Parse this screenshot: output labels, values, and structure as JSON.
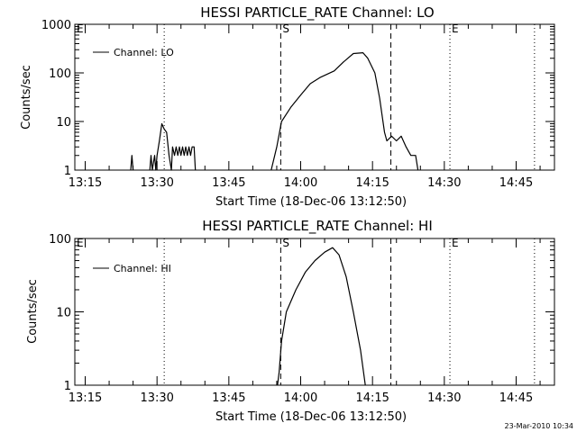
{
  "footer": {
    "date": "23-Mar-2010 10:34"
  },
  "chart_data": [
    {
      "type": "line",
      "title": "HESSI PARTICLE_RATE Channel: LO",
      "xlabel": "Start Time (18-Dec-06 13:12:50)",
      "ylabel": "Counts/sec",
      "yscale": "log",
      "xlim": [
        "13:12:50",
        "14:53:00"
      ],
      "ylim": [
        1,
        1000
      ],
      "x_ticks": [
        "13:15",
        "13:30",
        "13:45",
        "14:00",
        "14:15",
        "14:30",
        "14:45"
      ],
      "y_ticks": [
        "1",
        "10",
        "100",
        "1000"
      ],
      "legend": {
        "position": "top-left",
        "label": "Channel: LO"
      },
      "markers": [
        {
          "time": "13:12:50",
          "label": "E",
          "style": "dotted"
        },
        {
          "time": "13:31:30",
          "label": "",
          "style": "dotted"
        },
        {
          "time": "13:55:50",
          "label": "S",
          "style": "dashed"
        },
        {
          "time": "14:18:50",
          "label": "",
          "style": "dashed"
        },
        {
          "time": "14:31:10",
          "label": "E",
          "style": "dotted"
        },
        {
          "time": "14:48:50",
          "label": "",
          "style": "dotted"
        }
      ],
      "series": [
        {
          "name": "Channel: LO",
          "segments": [
            [
              [
                "13:24:30",
                1
              ],
              [
                "13:24:45",
                2
              ],
              [
                "13:25:00",
                1
              ]
            ],
            [
              [
                "13:28:30",
                1
              ],
              [
                "13:28:45",
                2
              ],
              [
                "13:29:00",
                1
              ],
              [
                "13:29:30",
                2
              ],
              [
                "13:29:45",
                1
              ],
              [
                "13:30:00",
                2
              ],
              [
                "13:30:30",
                4
              ],
              [
                "13:31:00",
                9
              ],
              [
                "13:31:30",
                7
              ],
              [
                "13:32:00",
                6
              ],
              [
                "13:32:30",
                2
              ],
              [
                "13:33:00",
                1
              ],
              [
                "13:33:15",
                3
              ],
              [
                "13:33:40",
                2
              ],
              [
                "13:34:00",
                3
              ],
              [
                "13:34:20",
                2
              ],
              [
                "13:34:40",
                3
              ],
              [
                "13:35:00",
                2
              ],
              [
                "13:35:20",
                3
              ],
              [
                "13:35:40",
                2
              ],
              [
                "13:36:00",
                3
              ],
              [
                "13:36:20",
                2
              ],
              [
                "13:36:40",
                3
              ],
              [
                "13:37:00",
                2
              ],
              [
                "13:37:20",
                3
              ],
              [
                "13:37:45",
                3
              ],
              [
                "13:38:00",
                1
              ]
            ],
            [
              [
                "13:53:50",
                1
              ],
              [
                "13:55:00",
                3
              ],
              [
                "13:56:00",
                10
              ],
              [
                "13:58:00",
                20
              ],
              [
                "14:00:00",
                35
              ],
              [
                "14:02:00",
                60
              ],
              [
                "14:04:00",
                80
              ],
              [
                "14:07:00",
                110
              ],
              [
                "14:09:00",
                170
              ],
              [
                "14:11:00",
                250
              ],
              [
                "14:13:00",
                260
              ],
              [
                "14:14:00",
                200
              ],
              [
                "14:15:30",
                100
              ],
              [
                "14:16:30",
                30
              ],
              [
                "14:17:30",
                6
              ],
              [
                "14:18:00",
                4
              ],
              [
                "14:19:00",
                5
              ],
              [
                "14:20:00",
                4
              ],
              [
                "14:21:00",
                5
              ],
              [
                "14:22:00",
                3
              ],
              [
                "14:23:00",
                2
              ],
              [
                "14:24:00",
                2
              ],
              [
                "14:24:30",
                1
              ]
            ]
          ]
        }
      ]
    },
    {
      "type": "line",
      "title": "HESSI PARTICLE_RATE Channel: HI",
      "xlabel": "Start Time (18-Dec-06 13:12:50)",
      "ylabel": "Counts/sec",
      "yscale": "log",
      "xlim": [
        "13:12:50",
        "14:53:00"
      ],
      "ylim": [
        1,
        100
      ],
      "x_ticks": [
        "13:15",
        "13:30",
        "13:45",
        "14:00",
        "14:15",
        "14:30",
        "14:45"
      ],
      "y_ticks": [
        "1",
        "10",
        "100"
      ],
      "legend": {
        "position": "top-left",
        "label": "Channel: HI"
      },
      "markers": [
        {
          "time": "13:12:50",
          "label": "E",
          "style": "dotted"
        },
        {
          "time": "13:31:30",
          "label": "",
          "style": "dotted"
        },
        {
          "time": "13:55:50",
          "label": "S",
          "style": "dashed"
        },
        {
          "time": "14:18:50",
          "label": "",
          "style": "dashed"
        },
        {
          "time": "14:31:10",
          "label": "E",
          "style": "dotted"
        },
        {
          "time": "14:48:50",
          "label": "",
          "style": "dotted"
        }
      ],
      "series": [
        {
          "name": "Channel: HI",
          "segments": [
            [
              [
                "13:55:10",
                1
              ],
              [
                "13:55:30",
                1.5
              ],
              [
                "13:56:00",
                4
              ],
              [
                "13:57:00",
                10
              ],
              [
                "13:59:00",
                20
              ],
              [
                "14:01:00",
                35
              ],
              [
                "14:03:00",
                50
              ],
              [
                "14:05:00",
                65
              ],
              [
                "14:06:40",
                75
              ],
              [
                "14:08:00",
                60
              ],
              [
                "14:09:30",
                30
              ],
              [
                "14:11:00",
                10
              ],
              [
                "14:12:30",
                3
              ],
              [
                "14:13:30",
                1
              ]
            ]
          ]
        }
      ]
    }
  ]
}
